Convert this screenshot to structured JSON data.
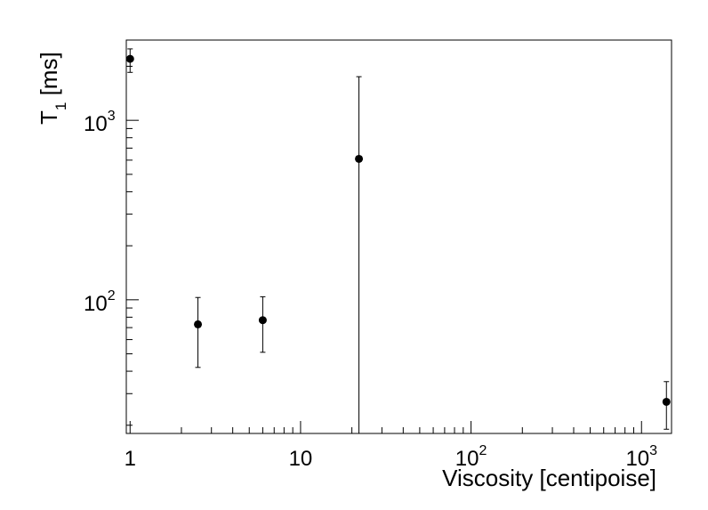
{
  "chart_data": {
    "type": "scatter",
    "title": "",
    "xlabel": "Viscosity [centipoise]",
    "ylabel_main": "T",
    "ylabel_sub": "1",
    "ylabel_unit": " [ms]",
    "xscale": "log",
    "yscale": "log",
    "xlim": [
      0.95,
      1500
    ],
    "ylim": [
      18,
      2800
    ],
    "grid": false,
    "legend": "none",
    "x_ticks": [
      {
        "value": 1,
        "base": "1",
        "exp": ""
      },
      {
        "value": 10,
        "base": "10",
        "exp": ""
      },
      {
        "value": 100,
        "base": "10",
        "exp": "2"
      },
      {
        "value": 1000,
        "base": "10",
        "exp": "3"
      }
    ],
    "y_ticks": [
      {
        "value": 100,
        "base": "10",
        "exp": "2"
      },
      {
        "value": 1000,
        "base": "10",
        "exp": "3"
      }
    ],
    "points": [
      {
        "x": 1,
        "y": 2200,
        "y_low": 1850,
        "y_high": 2500
      },
      {
        "x": 2.5,
        "y": 73,
        "y_low": 42,
        "y_high": 103
      },
      {
        "x": 6,
        "y": 77,
        "y_low": 51,
        "y_high": 104
      },
      {
        "x": 22,
        "y": 610,
        "y_low": 18,
        "y_high": 1750
      },
      {
        "x": 1400,
        "y": 27,
        "y_low": 19,
        "y_high": 35
      }
    ],
    "marker_color": "#000000"
  }
}
